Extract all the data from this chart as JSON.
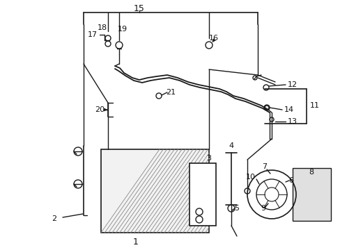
{
  "bg_color": "#ffffff",
  "line_color": "#1a1a1a",
  "label_color": "#111111",
  "fig_w": 4.89,
  "fig_h": 3.6,
  "dpi": 100
}
